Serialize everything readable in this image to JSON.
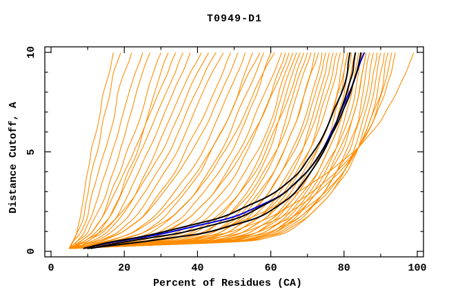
{
  "title": "T0949-D1",
  "axes": {
    "x": {
      "label": "Percent of Residues (CA)",
      "min": 0,
      "max": 100,
      "major_ticks": [
        0,
        20,
        40,
        60,
        80,
        100
      ],
      "minor_step": 10
    },
    "y": {
      "label": "Distance Cutoff, A",
      "min": 0,
      "max": 10,
      "major_ticks": [
        0,
        5,
        10
      ],
      "minor_step": 1
    }
  },
  "colors": {
    "ensemble": "#ff8c00",
    "highlight_blue": "#0000e0",
    "highlight_black": "#000000",
    "frame": "#000000"
  },
  "chart_data": {
    "type": "line",
    "title": "T0949-D1",
    "xlabel": "Percent of Residues (CA)",
    "ylabel": "Distance Cutoff, A",
    "xlim": [
      0,
      100
    ],
    "ylim": [
      0,
      10
    ],
    "grid": false,
    "legend": "none",
    "y_grid": [
      0.15,
      0.5,
      0.9,
      1.7,
      2.8,
      4.0,
      5.2,
      6.5,
      7.8,
      9.0,
      9.97
    ],
    "series": [
      {
        "name": "model-ensemble",
        "color": "#ff8c00",
        "width": 1.1,
        "curves": [
          [
            5,
            6,
            7,
            8,
            9,
            10,
            11,
            13,
            14,
            16,
            17
          ],
          [
            5,
            6,
            7,
            9,
            10,
            11,
            13,
            14,
            16,
            17,
            19
          ],
          [
            5,
            6,
            8,
            10,
            11,
            13,
            15,
            17,
            18,
            20,
            22
          ],
          [
            6,
            7,
            9,
            11,
            13,
            15,
            17,
            19,
            21,
            23,
            25
          ],
          [
            5,
            7,
            10,
            12,
            15,
            17,
            19,
            21,
            23,
            25,
            27
          ],
          [
            6,
            8,
            11,
            14,
            16,
            19,
            21,
            24,
            26,
            28,
            30
          ],
          [
            7,
            10,
            13,
            16,
            19,
            21,
            24,
            26,
            28,
            30,
            32
          ],
          [
            5,
            8,
            11,
            14,
            17,
            20,
            23,
            26,
            29,
            32,
            34
          ],
          [
            6,
            9,
            12,
            16,
            19,
            22,
            25,
            28,
            31,
            34,
            36
          ],
          [
            5,
            10,
            14,
            18,
            21,
            24,
            27,
            30,
            33,
            36,
            38
          ],
          [
            6,
            11,
            15,
            19,
            23,
            26,
            29,
            32,
            35,
            38,
            41
          ],
          [
            5,
            9,
            13,
            18,
            23,
            27,
            31,
            34,
            37,
            40,
            43
          ],
          [
            6,
            12,
            16,
            21,
            25,
            29,
            33,
            36,
            39,
            42,
            45
          ],
          [
            5,
            13,
            18,
            23,
            27,
            31,
            35,
            38,
            41,
            44,
            47
          ],
          [
            6,
            14,
            19,
            25,
            29,
            34,
            37,
            41,
            44,
            47,
            49
          ],
          [
            5,
            13,
            19,
            25,
            30,
            35,
            39,
            43,
            46,
            49,
            51
          ],
          [
            6,
            16,
            22,
            28,
            33,
            38,
            42,
            45,
            48,
            51,
            53
          ],
          [
            5,
            18,
            25,
            31,
            36,
            41,
            44,
            48,
            51,
            53,
            55
          ],
          [
            6,
            15,
            22,
            29,
            35,
            40,
            44,
            48,
            51,
            54,
            57
          ],
          [
            5,
            20,
            27,
            33,
            39,
            43,
            47,
            50,
            53,
            56,
            58
          ],
          [
            6,
            22,
            29,
            36,
            41,
            46,
            50,
            53,
            56,
            58,
            60
          ],
          [
            5,
            17,
            25,
            33,
            39,
            44,
            48,
            52,
            55,
            58,
            61
          ],
          [
            6,
            24,
            31,
            38,
            44,
            48,
            52,
            55,
            58,
            61,
            63
          ],
          [
            5,
            26,
            34,
            41,
            46,
            51,
            54,
            57,
            60,
            62,
            64
          ],
          [
            6,
            21,
            30,
            38,
            44,
            49,
            53,
            57,
            60,
            63,
            65
          ],
          [
            5,
            28,
            36,
            43,
            49,
            53,
            57,
            60,
            62,
            64,
            66
          ],
          [
            6,
            31,
            39,
            46,
            51,
            55,
            58,
            61,
            63,
            65,
            67
          ],
          [
            5,
            34,
            42,
            48,
            53,
            57,
            60,
            62,
            64,
            66,
            68
          ],
          [
            6,
            29,
            38,
            45,
            51,
            56,
            59,
            62,
            65,
            67,
            69
          ],
          [
            5,
            36,
            44,
            50,
            55,
            59,
            62,
            64,
            66,
            68,
            70
          ],
          [
            6,
            32,
            41,
            48,
            54,
            58,
            62,
            65,
            67,
            69,
            71
          ],
          [
            5,
            38,
            46,
            52,
            57,
            61,
            64,
            67,
            69,
            71,
            72
          ],
          [
            6,
            35,
            44,
            51,
            56,
            61,
            64,
            67,
            69,
            71,
            73
          ],
          [
            5,
            40,
            48,
            54,
            59,
            63,
            66,
            69,
            71,
            73,
            74
          ],
          [
            6,
            37,
            46,
            53,
            59,
            63,
            67,
            70,
            72,
            74,
            75
          ],
          [
            5,
            42,
            50,
            57,
            62,
            66,
            69,
            71,
            73,
            75,
            76
          ],
          [
            6,
            39,
            48,
            55,
            61,
            65,
            69,
            72,
            74,
            76,
            77
          ],
          [
            5,
            44,
            52,
            59,
            64,
            68,
            71,
            73,
            75,
            77,
            78
          ],
          [
            6,
            41,
            50,
            57,
            63,
            67,
            71,
            74,
            76,
            78,
            79
          ],
          [
            5,
            46,
            54,
            61,
            66,
            70,
            73,
            76,
            78,
            79,
            80
          ],
          [
            6,
            43,
            52,
            59,
            65,
            69,
            73,
            76,
            78,
            80,
            81
          ],
          [
            5,
            48,
            56,
            62,
            67,
            71,
            75,
            77,
            79,
            80,
            81
          ],
          [
            6,
            45,
            54,
            61,
            67,
            71,
            75,
            78,
            80,
            81,
            82
          ],
          [
            5,
            50,
            58,
            64,
            69,
            73,
            76,
            79,
            81,
            82,
            83
          ],
          [
            6,
            47,
            56,
            63,
            68,
            73,
            76,
            79,
            81,
            82,
            83
          ],
          [
            5,
            52,
            60,
            66,
            71,
            75,
            78,
            80,
            82,
            83,
            84
          ],
          [
            6,
            49,
            58,
            65,
            70,
            74,
            78,
            81,
            83,
            84,
            85
          ],
          [
            5,
            53,
            61,
            67,
            72,
            76,
            79,
            82,
            84,
            85,
            86
          ],
          [
            6,
            51,
            60,
            66,
            72,
            76,
            80,
            82,
            84,
            85,
            86
          ],
          [
            5,
            54,
            62,
            69,
            74,
            78,
            81,
            84,
            85,
            86,
            87
          ],
          [
            6,
            52,
            61,
            68,
            74,
            78,
            82,
            84,
            86,
            87,
            88
          ],
          [
            5,
            55,
            64,
            70,
            76,
            80,
            83,
            85,
            87,
            88,
            89
          ],
          [
            6,
            53,
            63,
            70,
            76,
            81,
            84,
            86,
            88,
            89,
            90
          ],
          [
            5,
            48,
            59,
            68,
            75,
            80,
            84,
            87,
            89,
            90,
            91
          ],
          [
            6,
            44,
            56,
            66,
            74,
            80,
            84,
            87,
            90,
            91,
            92
          ],
          [
            5,
            38,
            52,
            63,
            72,
            79,
            84,
            88,
            90,
            92,
            93
          ],
          [
            6,
            34,
            48,
            60,
            70,
            78,
            84,
            88,
            91,
            93,
            94
          ],
          [
            7,
            28,
            42,
            55,
            66,
            76,
            84,
            90,
            94,
            97,
            99
          ]
        ]
      },
      {
        "name": "highlight-blue",
        "color": "#0000e0",
        "width": 2,
        "curves": [
          [
            9,
            18,
            31,
            50,
            63,
            70,
            74.5,
            78,
            81,
            83.5,
            85.5
          ]
        ]
      },
      {
        "name": "highlight-black",
        "color": "#000000",
        "width": 2,
        "curves": [
          [
            9,
            17,
            29,
            47,
            60,
            68,
            72.5,
            76,
            79,
            81,
            81.6
          ],
          [
            10,
            26,
            42,
            57,
            66,
            71,
            75,
            78,
            80.5,
            82.5,
            83.1
          ],
          [
            11,
            21,
            35,
            52,
            63,
            70,
            74.5,
            78.5,
            81.5,
            83.5,
            84.6
          ]
        ]
      }
    ]
  }
}
